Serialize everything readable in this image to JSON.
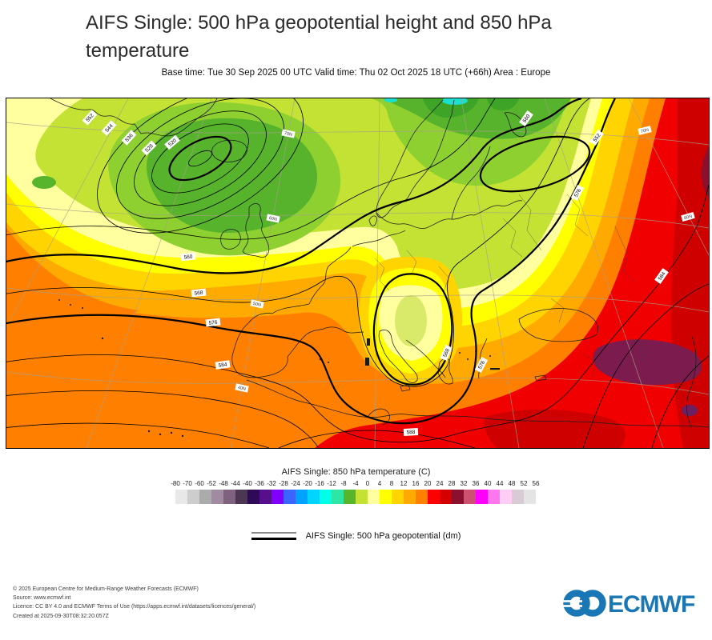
{
  "header": {
    "title": "AIFS Single: 500 hPa geopotential height and 850 hPa temperature",
    "subtitle": "Base time: Tue 30 Sep 2025 00 UTC Valid time: Thu 02 Oct 2025 18 UTC (+66h) Area : Europe"
  },
  "map": {
    "contour_labels": [
      "552",
      "544",
      "536",
      "528",
      "520",
      "560",
      "568",
      "576",
      "584",
      "568",
      "576",
      "552",
      "560",
      "576",
      "584",
      "588"
    ],
    "graticule_labels": [
      "70N",
      "60N",
      "50N",
      "40N",
      "70N",
      "60N"
    ]
  },
  "legend": {
    "colorbar_title": "AIFS Single: 850 hPa temperature (C)",
    "ticks": [
      "-80",
      "-70",
      "-60",
      "-52",
      "-48",
      "-44",
      "-40",
      "-36",
      "-32",
      "-28",
      "-24",
      "-20",
      "-16",
      "-12",
      "-8",
      "-4",
      "0",
      "4",
      "8",
      "12",
      "16",
      "20",
      "24",
      "28",
      "32",
      "36",
      "40",
      "44",
      "48",
      "52",
      "56"
    ],
    "colors": [
      "#e8e8e8",
      "#cdcdcd",
      "#ababab",
      "#a18ba1",
      "#7f627f",
      "#4d3653",
      "#2e0a59",
      "#570f8c",
      "#7f00ff",
      "#3c64ff",
      "#00a2ff",
      "#00d4ff",
      "#00ffe8",
      "#2ee6a4",
      "#56b52a",
      "#c3e233",
      "#ffffa0",
      "#ffff00",
      "#ffd400",
      "#ffaa00",
      "#ff8000",
      "#ff0000",
      "#d40000",
      "#8b1030",
      "#cc5070",
      "#ff00ff",
      "#ff77ee",
      "#ffccf5",
      "#d8cbd6",
      "#e4e4e4"
    ],
    "line_label": "AIFS Single: 500 hPa geopotential (dm)"
  },
  "footer": {
    "lines": [
      "© 2025 European Centre for Medium-Range Weather Forecasts (ECMWF)",
      "Source: www.ecmwf.int",
      "Licence: CC BY 4.0 and ECMWF Terms of Use (https://apps.ecmwf.int/datasets/licences/general/)",
      "Created at 2025-09-30T08:32:20.057Z"
    ],
    "logo_text": "ECMWF",
    "logo_blue": "#1a77b5"
  }
}
